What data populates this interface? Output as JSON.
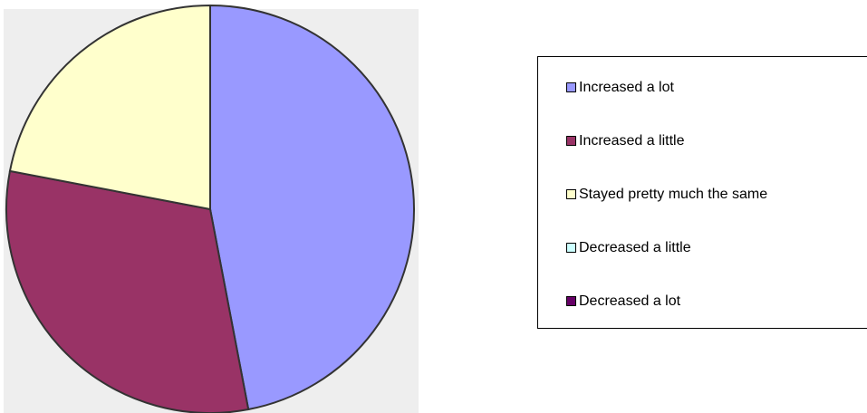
{
  "chart_data": {
    "type": "pie",
    "categories": [
      "Increased a lot",
      "Increased a little",
      "Stayed pretty much the same",
      "Decreased a little",
      "Decreased a lot"
    ],
    "values": [
      47,
      31,
      22,
      0,
      0
    ],
    "colors": [
      "#9999ff",
      "#993366",
      "#ffffcc",
      "#ccffff",
      "#660066"
    ],
    "legend": "right"
  }
}
